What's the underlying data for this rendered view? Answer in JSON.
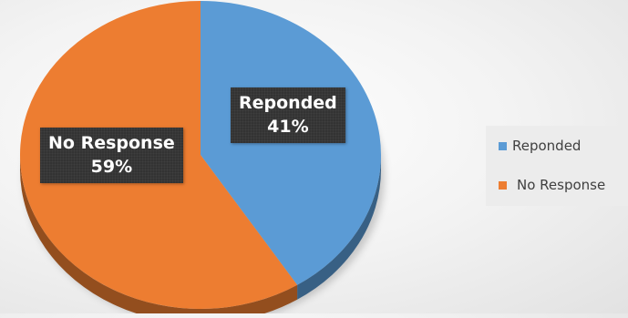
{
  "chart_data": {
    "type": "pie",
    "categories": [
      "Reponded",
      "No Response"
    ],
    "values": [
      41,
      59
    ],
    "value_labels": [
      "41%",
      "59%"
    ],
    "colors": [
      "#5b9bd5",
      "#ed7d31"
    ],
    "style": "3d",
    "title": "",
    "legend": {
      "placement": "right",
      "entries": [
        "Reponded",
        "No Response"
      ]
    }
  }
}
